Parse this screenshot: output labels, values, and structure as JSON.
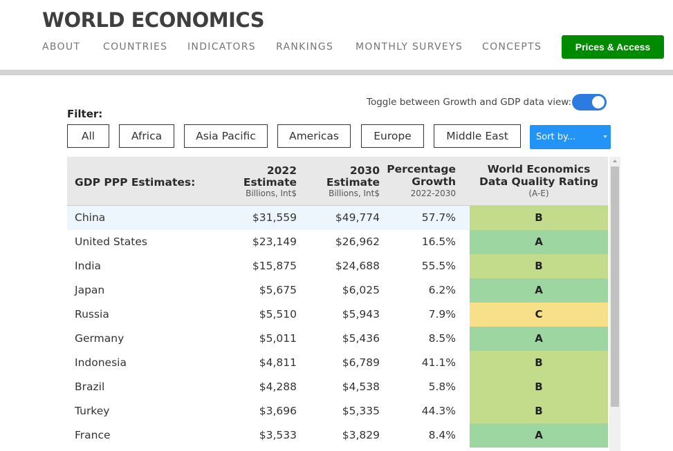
{
  "brand": {
    "logo": "WORLD ECONOMICS"
  },
  "nav": {
    "items": [
      "ABOUT",
      "COUNTRIES",
      "INDICATORS",
      "RANKINGS",
      "MONTHLY SURVEYS",
      "CONCEPTS"
    ],
    "cta": "Prices & Access"
  },
  "controls": {
    "toggle_label": "Toggle between Growth and GDP data view:",
    "toggle_state": "on",
    "filter_label": "Filter:",
    "filters": [
      "All",
      "Africa",
      "Asia Pacific",
      "Americas",
      "Europe",
      "Middle East"
    ],
    "sort_label": "Sort by..."
  },
  "table": {
    "headers": {
      "country": "GDP PPP Estimates:",
      "y2022_l1": "2022",
      "y2022_l2": "Estimate",
      "y2022_sub": "Billions, Int$",
      "y2030_l1": "2030",
      "y2030_l2": "Estimate",
      "y2030_sub": "Billions, Int$",
      "growth_l1": "Percentage",
      "growth_l2": "Growth",
      "growth_sub": "2022-2030",
      "rating_l1": "World Economics",
      "rating_l2": "Data Quality Rating",
      "rating_sub": "(A-E)"
    },
    "rows": [
      {
        "country": "China",
        "e2022": "$31,559",
        "e2030": "$49,774",
        "growth": "57.7%",
        "rating": "B"
      },
      {
        "country": "United States",
        "e2022": "$23,149",
        "e2030": "$26,962",
        "growth": "16.5%",
        "rating": "A"
      },
      {
        "country": "India",
        "e2022": "$15,875",
        "e2030": "$24,688",
        "growth": "55.5%",
        "rating": "B"
      },
      {
        "country": "Japan",
        "e2022": "$5,675",
        "e2030": "$6,025",
        "growth": "6.2%",
        "rating": "A"
      },
      {
        "country": "Russia",
        "e2022": "$5,510",
        "e2030": "$5,943",
        "growth": "7.9%",
        "rating": "C"
      },
      {
        "country": "Germany",
        "e2022": "$5,011",
        "e2030": "$5,436",
        "growth": "8.5%",
        "rating": "A"
      },
      {
        "country": "Indonesia",
        "e2022": "$4,811",
        "e2030": "$6,789",
        "growth": "41.1%",
        "rating": "B"
      },
      {
        "country": "Brazil",
        "e2022": "$4,288",
        "e2030": "$4,538",
        "growth": "5.8%",
        "rating": "B"
      },
      {
        "country": "Turkey",
        "e2022": "$3,696",
        "e2030": "$5,335",
        "growth": "44.3%",
        "rating": "B"
      },
      {
        "country": "France",
        "e2022": "$3,533",
        "e2030": "$3,829",
        "growth": "8.4%",
        "rating": "A"
      }
    ]
  },
  "colors": {
    "cta_green": "#008a00",
    "toggle_blue": "#2d7ae0",
    "sort_blue": "#2394f7",
    "rating_A": "#9ed6a2",
    "rating_B": "#c3dc8c",
    "rating_C": "#f8e08a",
    "row_highlight": "#eef6fd"
  }
}
